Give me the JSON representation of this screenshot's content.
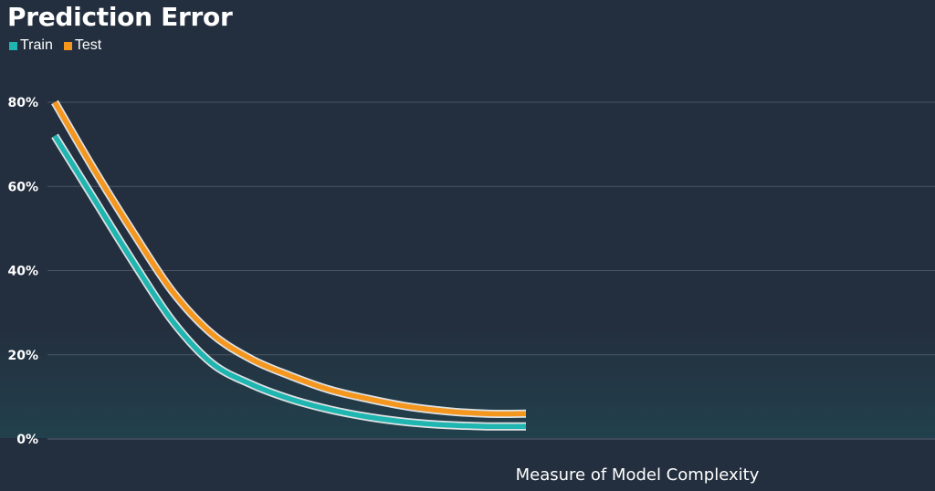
{
  "chart_data": {
    "type": "line",
    "title": "Prediction Error",
    "xlabel": "Measure of Model Complexity",
    "ylabel": "",
    "ylim": [
      0,
      80
    ],
    "yticks": [
      "0%",
      "20%",
      "40%",
      "60%",
      "80%"
    ],
    "grid": true,
    "legend_position": "top-left",
    "x": [
      0,
      1,
      2,
      3,
      4,
      5,
      6,
      7,
      8,
      9,
      10,
      11,
      12
    ],
    "series": [
      {
        "name": "Train",
        "color": "#1fb5b0",
        "values": [
          72,
          57,
          42,
          28,
          18,
          13,
          9.5,
          7,
          5.2,
          4,
          3.3,
          3,
          3
        ]
      },
      {
        "name": "Test",
        "color": "#f5961d",
        "values": [
          80,
          64,
          49,
          35,
          25,
          19,
          15,
          11.7,
          9.5,
          7.7,
          6.6,
          6,
          6
        ]
      }
    ]
  }
}
